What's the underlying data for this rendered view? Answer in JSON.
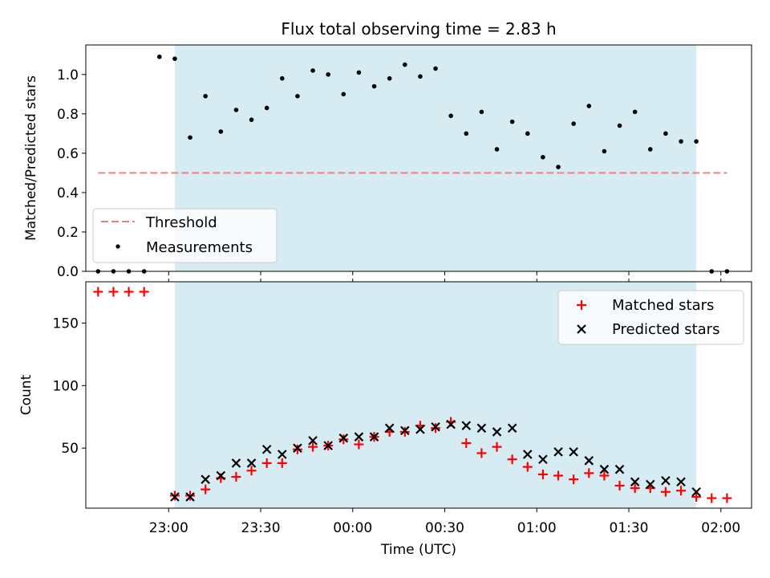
{
  "chart_data": {
    "title": "Flux total observing time = 2.83 h",
    "xlabel": "Time (UTC)",
    "x_ticks": [
      "23:00",
      "23:30",
      "00:00",
      "00:30",
      "01:00",
      "01:30",
      "02:00"
    ],
    "shaded_region": {
      "from": "23:02",
      "to": "01:52",
      "color": "#add8e6"
    },
    "panels": [
      {
        "type": "scatter",
        "ylabel": "Matched/Predicted stars",
        "ylim": [
          0,
          1.15
        ],
        "y_ticks": [
          "0.0",
          "0.2",
          "0.4",
          "0.6",
          "0.8",
          "1.0"
        ],
        "legend": {
          "placement": "lower-left",
          "entries": [
            "Threshold",
            "Measurements"
          ]
        },
        "threshold": {
          "name": "Threshold",
          "value": 0.5,
          "from": "22:37",
          "to": "02:02",
          "color": "#f08080",
          "style": "dashed"
        },
        "series": [
          {
            "name": "Measurements",
            "marker": "dot",
            "color": "#000000",
            "x": [
              "22:37",
              "22:42",
              "22:47",
              "22:52",
              "22:57",
              "23:02",
              "23:07",
              "23:12",
              "23:17",
              "23:22",
              "23:27",
              "23:32",
              "23:37",
              "23:42",
              "23:47",
              "23:52",
              "23:57",
              "00:02",
              "00:07",
              "00:12",
              "00:17",
              "00:22",
              "00:27",
              "00:32",
              "00:37",
              "00:42",
              "00:47",
              "00:52",
              "00:57",
              "01:02",
              "01:07",
              "01:12",
              "01:17",
              "01:22",
              "01:27",
              "01:32",
              "01:37",
              "01:42",
              "01:47",
              "01:52",
              "01:57",
              "02:02"
            ],
            "y": [
              0,
              0,
              0,
              0,
              1.09,
              1.08,
              0.68,
              0.89,
              0.71,
              0.82,
              0.77,
              0.83,
              0.98,
              0.89,
              1.02,
              1.0,
              0.9,
              1.01,
              0.94,
              0.98,
              1.05,
              0.99,
              1.03,
              0.79,
              0.7,
              0.81,
              0.62,
              0.76,
              0.7,
              0.58,
              0.53,
              0.75,
              0.84,
              0.61,
              0.74,
              0.81,
              0.62,
              0.7,
              0.66,
              0.66,
              0,
              0
            ]
          }
        ]
      },
      {
        "type": "scatter",
        "ylabel": "Count",
        "ylim": [
          2,
          183
        ],
        "y_ticks": [
          "50",
          "100",
          "150"
        ],
        "legend": {
          "placement": "upper-right",
          "entries": [
            "Matched stars",
            "Predicted stars"
          ]
        },
        "series": [
          {
            "name": "Matched stars",
            "marker": "plus",
            "color": "#ff0000",
            "x": [
              "22:37",
              "22:42",
              "22:47",
              "22:52",
              "23:02",
              "23:07",
              "23:12",
              "23:17",
              "23:22",
              "23:27",
              "23:32",
              "23:37",
              "23:42",
              "23:47",
              "23:52",
              "23:57",
              "00:02",
              "00:07",
              "00:12",
              "00:17",
              "00:22",
              "00:27",
              "00:32",
              "00:37",
              "00:42",
              "00:47",
              "00:52",
              "00:57",
              "01:02",
              "01:07",
              "01:12",
              "01:17",
              "01:22",
              "01:27",
              "01:32",
              "01:37",
              "01:42",
              "01:47",
              "01:52",
              "01:57",
              "02:02"
            ],
            "y": [
              175,
              175,
              175,
              175,
              12,
              12,
              17,
              26,
              27,
              32,
              38,
              38,
              49,
              51,
              52,
              57,
              53,
              59,
              63,
              63,
              68,
              66,
              71,
              54,
              46,
              51,
              41,
              35,
              29,
              28,
              25,
              30,
              28,
              20,
              18,
              18,
              15,
              16,
              11,
              10,
              10
            ]
          },
          {
            "name": "Predicted stars",
            "marker": "x",
            "color": "#000000",
            "x": [
              "23:02",
              "23:07",
              "23:12",
              "23:17",
              "23:22",
              "23:27",
              "23:32",
              "23:37",
              "23:42",
              "23:47",
              "23:52",
              "23:57",
              "00:02",
              "00:07",
              "00:12",
              "00:17",
              "00:22",
              "00:27",
              "00:32",
              "00:37",
              "00:42",
              "00:47",
              "00:52",
              "00:57",
              "01:02",
              "01:07",
              "01:12",
              "01:17",
              "01:22",
              "01:27",
              "01:32",
              "01:37",
              "01:42",
              "01:47",
              "01:52"
            ],
            "y": [
              11,
              11,
              25,
              28,
              38,
              38,
              49,
              45,
              50,
              56,
              52,
              58,
              59,
              59,
              66,
              64,
              65,
              67,
              69,
              68,
              66,
              63,
              66,
              45,
              41,
              47,
              47,
              40,
              33,
              33,
              23,
              21,
              24,
              23,
              15
            ]
          }
        ]
      }
    ]
  }
}
